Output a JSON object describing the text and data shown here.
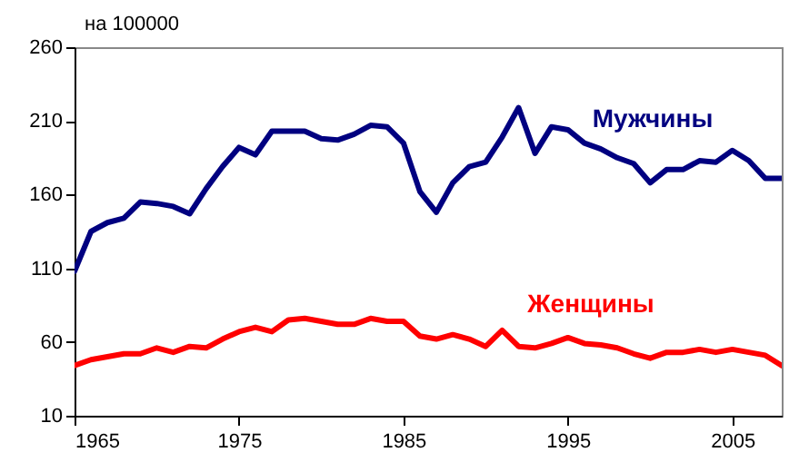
{
  "chart_data": {
    "type": "line",
    "ylabel": "на 100000",
    "x": [
      1965,
      1966,
      1967,
      1968,
      1969,
      1970,
      1971,
      1972,
      1973,
      1974,
      1975,
      1976,
      1977,
      1978,
      1979,
      1980,
      1981,
      1982,
      1983,
      1984,
      1985,
      1986,
      1987,
      1988,
      1989,
      1990,
      1991,
      1992,
      1993,
      1994,
      1995,
      1996,
      1997,
      1998,
      1999,
      2000,
      2001,
      2002,
      2003,
      2004,
      2005,
      2006,
      2007,
      2008
    ],
    "series": [
      {
        "name": "Мужчины",
        "color": "#000080",
        "values": [
          108,
          135,
          141,
          144,
          155,
          154,
          152,
          147,
          164,
          179,
          192,
          187,
          203,
          203,
          203,
          198,
          197,
          201,
          207,
          206,
          195,
          162,
          148,
          168,
          179,
          182,
          199,
          219,
          188,
          206,
          204,
          195,
          191,
          185,
          181,
          168,
          177,
          177,
          183,
          182,
          190,
          183,
          171,
          171
        ]
      },
      {
        "name": "Женщины",
        "color": "#ff0000",
        "values": [
          44,
          48,
          50,
          52,
          52,
          56,
          53,
          57,
          56,
          62,
          67,
          70,
          67,
          75,
          76,
          74,
          72,
          72,
          76,
          74,
          74,
          64,
          62,
          65,
          62,
          57,
          68,
          57,
          56,
          59,
          63,
          59,
          58,
          56,
          52,
          49,
          53,
          53,
          55,
          53,
          55,
          53,
          51,
          44
        ]
      }
    ],
    "xlim": [
      1965,
      2008
    ],
    "xticks": [
      1965,
      1975,
      1985,
      1995,
      2005
    ],
    "ylim": [
      10,
      260
    ],
    "yticks": [
      10,
      60,
      110,
      160,
      210,
      260
    ],
    "grid": false,
    "legend": false,
    "line_style": "solid",
    "marker": "none"
  }
}
